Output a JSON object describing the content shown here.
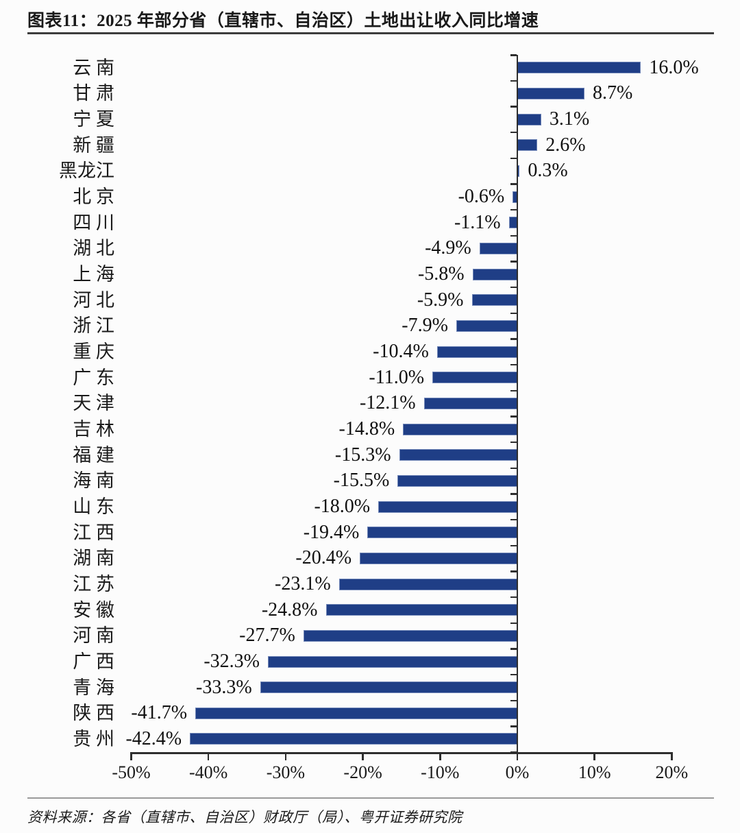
{
  "header": {
    "title": "图表11：2025 年部分省（直辖市、自治区）土地出让收入同比增速"
  },
  "footer": {
    "source": "资料来源：各省（直辖市、自治区）财政厅（局）、粤开证券研究院"
  },
  "chart_data": {
    "type": "bar",
    "orientation": "horizontal",
    "title": "2025 年部分省（直辖市、自治区）土地出让收入同比增速",
    "categories": [
      "云南",
      "甘肃",
      "宁夏",
      "新疆",
      "黑龙江",
      "北京",
      "四川",
      "湖北",
      "上海",
      "河北",
      "浙江",
      "重庆",
      "广东",
      "天津",
      "吉林",
      "福建",
      "海南",
      "山东",
      "江西",
      "湖南",
      "江苏",
      "安徽",
      "河南",
      "广西",
      "青海",
      "陕西",
      "贵州"
    ],
    "values": [
      16.0,
      8.7,
      3.1,
      2.6,
      0.3,
      -0.6,
      -1.1,
      -4.9,
      -5.8,
      -5.9,
      -7.9,
      -10.4,
      -11.0,
      -12.1,
      -14.8,
      -15.3,
      -15.5,
      -18.0,
      -19.4,
      -20.4,
      -23.1,
      -24.8,
      -27.7,
      -32.3,
      -33.3,
      -41.7,
      -42.4
    ],
    "data_labels": [
      "16.0%",
      "8.7%",
      "3.1%",
      "2.6%",
      "0.3%",
      "-0.6%",
      "-1.1%",
      "-4.9%",
      "-5.8%",
      "-5.9%",
      "-7.9%",
      "-10.4%",
      "-11.0%",
      "-12.1%",
      "-14.8%",
      "-15.3%",
      "-15.5%",
      "-18.0%",
      "-19.4%",
      "-20.4%",
      "-23.1%",
      "-24.8%",
      "-27.7%",
      "-32.3%",
      "-33.3%",
      "-41.7%",
      "-42.4%"
    ],
    "xlabel": "",
    "ylabel": "",
    "xlim": [
      -50,
      20
    ],
    "x_ticks": [
      "-50%",
      "-40%",
      "-30%",
      "-20%",
      "-10%",
      "0%",
      "10%",
      "20%"
    ],
    "x_tick_values": [
      -50,
      -40,
      -30,
      -20,
      -10,
      0,
      10,
      20
    ],
    "bar_color": "#1f3e86",
    "grid": false,
    "legend": false
  }
}
